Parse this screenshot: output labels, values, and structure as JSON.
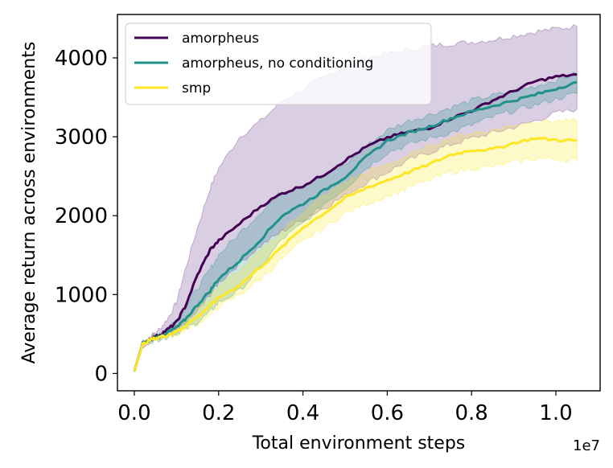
{
  "chart_data": {
    "type": "line",
    "title": "",
    "xlabel": "Total environment steps",
    "ylabel": "Average return across environments",
    "x_offset_label": "1e7",
    "xlim": [
      -0.04,
      1.105
    ],
    "ylim": [
      -220,
      4550
    ],
    "xticks": [
      0.0,
      0.2,
      0.4,
      0.6,
      0.8,
      1.0
    ],
    "xtick_labels": [
      "0.0",
      "0.2",
      "0.4",
      "0.6",
      "0.8",
      "1.0"
    ],
    "yticks": [
      0,
      1000,
      2000,
      3000,
      4000
    ],
    "ytick_labels": [
      "0",
      "1000",
      "2000",
      "3000",
      "4000"
    ],
    "grid": false,
    "legend_position": "top-left",
    "x": [
      0.0,
      0.02,
      0.04,
      0.06,
      0.08,
      0.1,
      0.12,
      0.15,
      0.18,
      0.2,
      0.25,
      0.3,
      0.35,
      0.4,
      0.45,
      0.5,
      0.55,
      0.6,
      0.65,
      0.7,
      0.75,
      0.8,
      0.85,
      0.9,
      0.95,
      1.0,
      1.05
    ],
    "series": [
      {
        "name": "amorpheus",
        "color": "#440154",
        "band_color": "#6a3d8f",
        "values": [
          30,
          380,
          440,
          490,
          560,
          650,
          840,
          1250,
          1570,
          1680,
          1900,
          2120,
          2280,
          2380,
          2520,
          2700,
          2870,
          2990,
          3060,
          3110,
          3230,
          3330,
          3460,
          3580,
          3700,
          3760,
          3790
        ],
        "lower": [
          20,
          350,
          410,
          450,
          490,
          540,
          620,
          790,
          1000,
          1150,
          1400,
          1620,
          1800,
          1950,
          2100,
          2250,
          2420,
          2550,
          2700,
          2800,
          2900,
          2980,
          3050,
          3120,
          3200,
          3300,
          3350
        ],
        "upper": [
          40,
          400,
          480,
          560,
          700,
          900,
          1300,
          1850,
          2350,
          2600,
          3000,
          3200,
          3450,
          3600,
          3750,
          3900,
          4000,
          4050,
          4100,
          4150,
          4180,
          4200,
          4230,
          4280,
          4330,
          4370,
          4400
        ]
      },
      {
        "name": "amorpheus, no conditioning",
        "color": "#21918c",
        "band_color": "#21918c",
        "values": [
          30,
          380,
          430,
          470,
          520,
          580,
          680,
          870,
          1050,
          1200,
          1430,
          1700,
          2000,
          2150,
          2320,
          2490,
          2740,
          2950,
          3050,
          3130,
          3230,
          3320,
          3390,
          3460,
          3530,
          3610,
          3690
        ],
        "lower": [
          20,
          360,
          410,
          440,
          470,
          510,
          560,
          650,
          780,
          900,
          1050,
          1350,
          1700,
          1900,
          2150,
          2350,
          2600,
          2800,
          2900,
          2980,
          3050,
          3150,
          3250,
          3330,
          3400,
          3480,
          3550
        ],
        "upper": [
          40,
          400,
          460,
          510,
          590,
          680,
          820,
          1080,
          1320,
          1500,
          1780,
          2050,
          2300,
          2400,
          2500,
          2650,
          2880,
          3080,
          3200,
          3280,
          3370,
          3460,
          3520,
          3580,
          3640,
          3720,
          3800
        ]
      },
      {
        "name": "smp",
        "color": "#fde725",
        "band_color": "#fde725",
        "values": [
          30,
          370,
          430,
          460,
          490,
          530,
          600,
          720,
          860,
          960,
          1120,
          1350,
          1600,
          1850,
          2030,
          2220,
          2350,
          2450,
          2550,
          2650,
          2770,
          2830,
          2840,
          2920,
          2980,
          2960,
          2950
        ],
        "lower": [
          20,
          350,
          410,
          440,
          460,
          490,
          540,
          630,
          750,
          840,
          1000,
          1200,
          1450,
          1670,
          1850,
          2030,
          2150,
          2250,
          2350,
          2450,
          2550,
          2600,
          2620,
          2680,
          2720,
          2720,
          2700
        ],
        "upper": [
          40,
          390,
          450,
          490,
          520,
          570,
          660,
          820,
          980,
          1100,
          1300,
          1550,
          1800,
          2050,
          2250,
          2420,
          2550,
          2650,
          2760,
          2880,
          2990,
          3050,
          3080,
          3150,
          3200,
          3200,
          3200
        ]
      }
    ]
  }
}
